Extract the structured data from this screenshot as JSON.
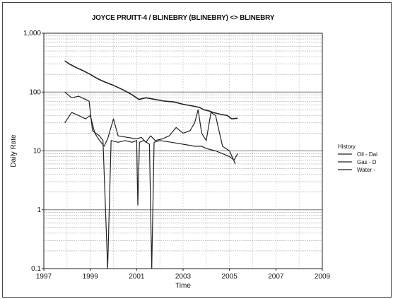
{
  "chart_data": {
    "type": "line",
    "title": "JOYCE PRUITT-4 / BLINEBRY (BLINEBRY) <> BLINEBRY",
    "xlabel": "Time",
    "ylabel": "Daily Rate",
    "xlim": [
      1997,
      2009
    ],
    "ylim": [
      0.1,
      1000
    ],
    "yscale": "log",
    "x_ticks": [
      "1997",
      "1999",
      "2001",
      "2003",
      "2005",
      "2007",
      "2009"
    ],
    "y_ticks": [
      "0.1",
      "1",
      "10",
      "100",
      "1,000"
    ],
    "grid": true,
    "legend": {
      "title": "History",
      "placement": "right"
    },
    "series": [
      {
        "name": "Oil - Dai",
        "color": "#222222",
        "x": [
          1997.9,
          1998.2,
          1998.5,
          1998.8,
          1998.95,
          1999.1,
          1999.4,
          1999.55,
          1999.75,
          1999.9,
          2000.2,
          2000.5,
          2000.8,
          2001.0,
          2001.05,
          2001.12,
          2001.3,
          2001.55,
          2001.65,
          2001.75,
          2002.0,
          2002.5,
          2003.0,
          2003.5,
          2003.8,
          2004.0,
          2004.4,
          2004.7,
          2005.0,
          2005.2,
          2005.35
        ],
        "y": [
          100,
          80,
          85,
          75,
          70,
          22,
          18,
          15,
          0.1,
          15,
          14,
          15,
          14,
          15,
          1.2,
          14,
          15,
          13,
          0.1,
          14,
          15,
          14,
          13,
          12,
          12,
          11,
          10,
          9,
          8,
          7,
          9
        ]
      },
      {
        "name": "Gas - D",
        "color": "#222222",
        "x": [
          1997.9,
          1998.1,
          1998.4,
          1998.7,
          1999.0,
          1999.3,
          1999.6,
          2000.0,
          2000.4,
          2000.8,
          2001.1,
          2001.4,
          2001.8,
          2002.2,
          2002.6,
          2003.0,
          2003.4,
          2003.7,
          2003.9,
          2004.1,
          2004.3,
          2004.6,
          2004.9,
          2005.1,
          2005.35
        ],
        "y": [
          340,
          300,
          260,
          230,
          200,
          170,
          150,
          130,
          110,
          90,
          75,
          80,
          75,
          70,
          68,
          62,
          58,
          55,
          50,
          48,
          45,
          42,
          40,
          35,
          36
        ]
      },
      {
        "name": "Water -",
        "color": "#222222",
        "x": [
          1997.9,
          1998.2,
          1998.5,
          1998.8,
          1999.0,
          1999.2,
          1999.4,
          1999.6,
          1999.75,
          2000.0,
          2000.2,
          2000.6,
          2001.0,
          2001.2,
          2001.4,
          2001.6,
          2001.8,
          2002.1,
          2002.4,
          2002.7,
          2003.0,
          2003.3,
          2003.5,
          2003.65,
          2003.8,
          2004.0,
          2004.2,
          2004.4,
          2004.7,
          2005.0,
          2005.25
        ],
        "y": [
          30,
          45,
          40,
          35,
          40,
          20,
          15,
          12,
          16,
          35,
          18,
          17,
          16,
          17,
          14,
          18,
          15,
          16,
          18,
          25,
          20,
          22,
          30,
          50,
          20,
          15,
          45,
          40,
          12,
          10,
          6
        ]
      }
    ]
  }
}
